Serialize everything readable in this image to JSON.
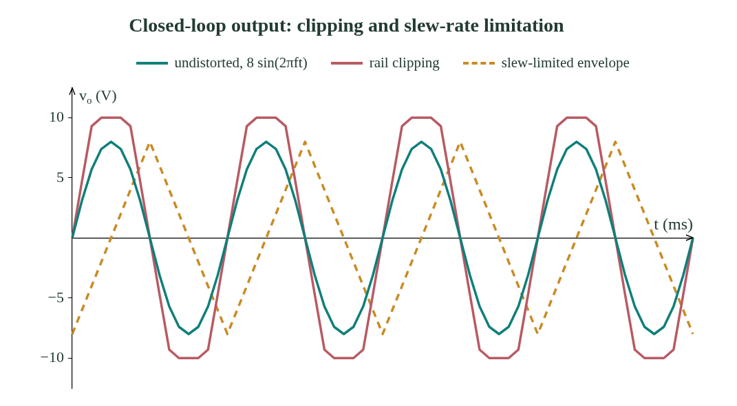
{
  "chart_data": {
    "type": "line",
    "title": "Closed-loop output: clipping and slew-rate limitation",
    "xlabel": "t (ms)",
    "ylabel": "v$_{o}$ (V)",
    "categories": [
      null,
      null,
      null,
      null,
      null,
      null,
      null,
      null,
      null,
      null,
      null,
      null,
      null,
      null,
      null,
      null,
      null,
      null,
      null,
      null,
      null,
      null,
      null,
      null,
      null,
      null,
      null,
      null,
      null,
      null,
      null,
      null,
      null,
      null,
      null,
      null,
      null,
      null,
      null,
      null,
      null,
      null,
      null,
      null,
      null,
      null,
      null,
      null,
      null,
      null,
      null,
      null,
      null,
      null,
      null,
      null,
      null,
      null,
      null,
      null,
      null,
      null,
      null,
      null,
      null
    ],
    "ylim": [
      -12.5,
      12.5
    ],
    "yticks": [
      -10,
      -5,
      5,
      10
    ],
    "grid": false,
    "legend": "top",
    "tick_labels": "y",
    "marker": "none",
    "series": [
      {
        "name": "undistorted, 8 sin(2πft)",
        "color": "#0f7f7a",
        "line_style": "solid",
        "values": [
          0,
          3.1,
          5.7,
          7.4,
          8,
          7.4,
          5.7,
          3.1,
          0,
          -3.1,
          -5.7,
          -7.4,
          -8,
          -7.4,
          -5.7,
          -3.1,
          0,
          3.1,
          5.7,
          7.4,
          8,
          7.4,
          5.7,
          3.1,
          0,
          -3.1,
          -5.7,
          -7.4,
          -8,
          -7.4,
          -5.7,
          -3.1,
          0,
          3.1,
          5.7,
          7.4,
          8,
          7.4,
          5.7,
          3.1,
          0,
          -3.1,
          -5.7,
          -7.4,
          -8,
          -7.4,
          -5.7,
          -3.1,
          0,
          3.1,
          5.7,
          7.4,
          8,
          7.4,
          5.7,
          3.1,
          0,
          -3.1,
          -5.7,
          -7.4,
          -8,
          -7.4,
          -5.7,
          -3.1,
          0
        ]
      },
      {
        "name": "rail clipping",
        "color": "#b85a63",
        "line_style": "solid",
        "values": [
          0,
          4.7,
          9.3,
          10,
          10,
          10,
          9.3,
          4.7,
          0,
          -4.7,
          -9.3,
          -10,
          -10,
          -10,
          -9.3,
          -4.7,
          0,
          4.7,
          9.3,
          10,
          10,
          10,
          9.3,
          4.7,
          0,
          -4.7,
          -9.3,
          -10,
          -10,
          -10,
          -9.3,
          -4.7,
          0,
          4.7,
          9.3,
          10,
          10,
          10,
          9.3,
          4.7,
          0,
          -4.7,
          -9.3,
          -10,
          -10,
          -10,
          -9.3,
          -4.7,
          0,
          4.7,
          9.3,
          10,
          10,
          10,
          9.3,
          4.7,
          0,
          -4.7,
          -9.3,
          -10,
          -10,
          -10,
          -9.3,
          -4.7,
          0
        ]
      },
      {
        "name": "slew-limited envelope",
        "color": "#c98b24",
        "line_style": "dashed",
        "values": [
          -8,
          -6,
          -4,
          -2,
          0,
          2,
          4,
          6,
          8,
          6,
          4,
          2,
          0,
          -2,
          -4,
          -6,
          -8,
          -6,
          -4,
          -2,
          0,
          2,
          4,
          6,
          8,
          6,
          4,
          2,
          0,
          -2,
          -4,
          -6,
          -8,
          -6,
          -4,
          -2,
          0,
          2,
          4,
          6,
          8,
          6,
          4,
          2,
          0,
          -2,
          -4,
          -6,
          -8,
          -6,
          -4,
          -2,
          0,
          2,
          4,
          6,
          8,
          6,
          4,
          2,
          0,
          -2,
          -4,
          -6,
          -8
        ]
      }
    ]
  }
}
